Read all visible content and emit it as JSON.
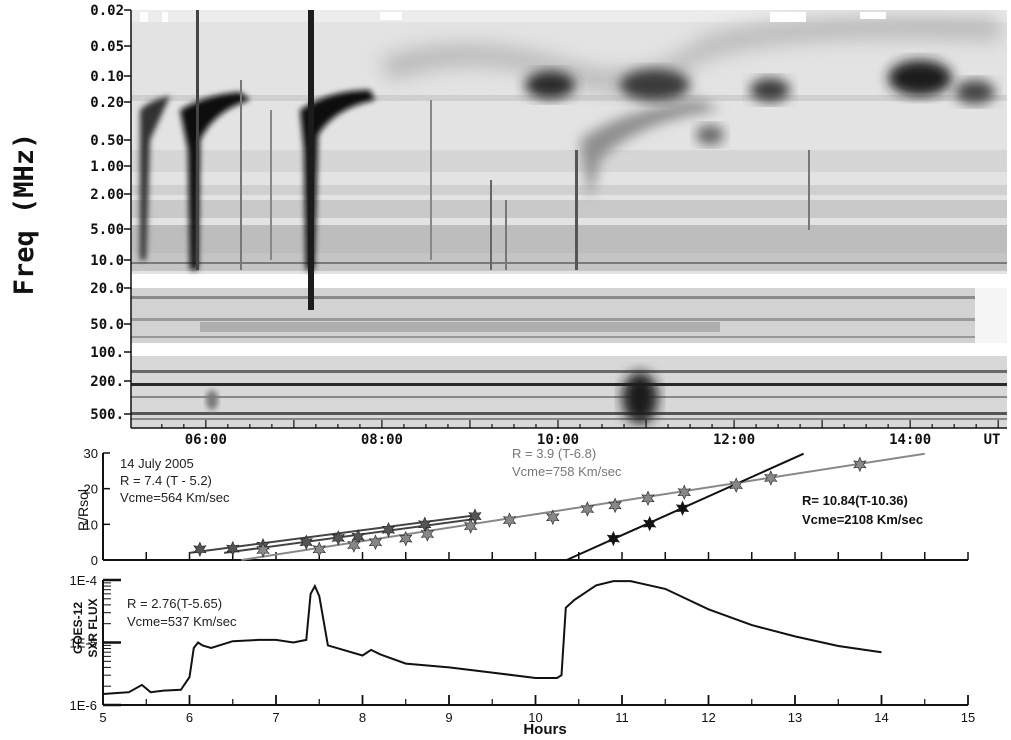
{
  "chart_data": [
    {
      "type": "heatmap",
      "ylabel": "Freq (MHz)",
      "freq_ticks": [
        "0.02",
        "0.05",
        "0.10",
        "0.20",
        "0.50",
        "1.00",
        "2.00",
        "5.00",
        "10.0",
        "20.0",
        "50.0",
        "100.",
        "200.",
        "500."
      ],
      "time_ticks": [
        "06:00",
        "08:00",
        "10:00",
        "12:00",
        "14:00"
      ],
      "time_unit_label": "UT",
      "xlim_hours": [
        5.15,
        15.1
      ]
    },
    {
      "type": "scatter",
      "ylabel": "R/Rsol",
      "ylim": [
        0,
        30
      ],
      "yticks": [
        "0",
        "10",
        "20",
        "30"
      ],
      "xlim": [
        5,
        15
      ],
      "annotations": {
        "date": "14 July 2005",
        "a_fit": "R = 7.4 (T - 5.2)",
        "a_speed": "Vcme=564 Km/sec",
        "b_fit": "R = 3.9 (T-6.8)",
        "b_speed": "Vcme=758 Km/sec",
        "c_fit": "R= 10.84(T-10.36)",
        "c_speed": "Vcme=2108 Km/sec"
      },
      "series": [
        {
          "color": "#555555",
          "points": [
            [
              6.12,
              3.0
            ],
            [
              6.5,
              3.2
            ],
            [
              6.85,
              4.0
            ],
            [
              7.35,
              5.0
            ],
            [
              7.72,
              6.2
            ],
            [
              7.95,
              6.5
            ],
            [
              8.3,
              8.5
            ],
            [
              8.72,
              10.0
            ],
            [
              9.3,
              12.3
            ]
          ]
        },
        {
          "color": "#888888",
          "points": [
            [
              6.85,
              2.8
            ],
            [
              7.5,
              3.0
            ],
            [
              7.9,
              4.2
            ],
            [
              8.15,
              5.0
            ],
            [
              8.5,
              6.0
            ],
            [
              8.75,
              7.3
            ],
            [
              9.25,
              9.5
            ],
            [
              9.7,
              11.2
            ],
            [
              10.2,
              12.0
            ],
            [
              10.6,
              14.3
            ],
            [
              10.92,
              15.3
            ],
            [
              11.3,
              17.3
            ],
            [
              11.72,
              19.0
            ],
            [
              12.32,
              21.0
            ],
            [
              12.72,
              23.0
            ],
            [
              13.75,
              26.8
            ]
          ]
        },
        {
          "color": "#111111",
          "points": [
            [
              10.9,
              6.0
            ],
            [
              11.32,
              10.2
            ],
            [
              11.7,
              14.5
            ]
          ]
        }
      ],
      "fit_lines": [
        {
          "color": "#444444",
          "from": [
            6.0,
            2.0
          ],
          "to": [
            9.3,
            12.5
          ]
        },
        {
          "color": "#444444",
          "from": [
            6.4,
            2.0
          ],
          "to": [
            9.3,
            11.5
          ]
        },
        {
          "color": "#888888",
          "from": [
            6.6,
            -0.8
          ],
          "to": [
            14.5,
            29.8
          ]
        },
        {
          "color": "#111111",
          "from": [
            10.36,
            0.0
          ],
          "to": [
            13.1,
            29.8
          ]
        }
      ]
    },
    {
      "type": "line",
      "xlabel": "Hours",
      "ylabel_line1": "GOES-12",
      "ylabel_line2": "SXR FLUX",
      "ylim": [
        1e-06,
        0.0001
      ],
      "yscale": "log",
      "yticks": [
        "1E-6",
        "1E-5",
        "1E-4"
      ],
      "xticks": [
        "5",
        "6",
        "7",
        "8",
        "9",
        "10",
        "11",
        "12",
        "13",
        "14",
        "15"
      ],
      "xlim": [
        5,
        15
      ],
      "annotations": {
        "fit": "R = 2.76(T-5.65)",
        "speed": "Vcme=537 Km/sec"
      },
      "x": [
        5.0,
        5.3,
        5.45,
        5.55,
        5.7,
        5.9,
        6.0,
        6.05,
        6.1,
        6.15,
        6.25,
        6.5,
        6.8,
        7.0,
        7.2,
        7.35,
        7.4,
        7.45,
        7.5,
        7.6,
        8.0,
        8.1,
        8.2,
        8.5,
        9.0,
        9.5,
        10.0,
        10.25,
        10.3,
        10.35,
        10.45,
        10.7,
        10.9,
        11.1,
        11.5,
        12.0,
        12.5,
        13.0,
        13.5,
        14.0
      ],
      "y": [
        1.5e-06,
        1.6e-06,
        2.1e-06,
        1.6e-06,
        1.7e-06,
        1.75e-06,
        2.8e-06,
        8.2e-06,
        1e-05,
        9e-06,
        8.2e-06,
        1.05e-05,
        1.1e-05,
        1.1e-05,
        1e-05,
        1.1e-05,
        6e-05,
        8e-05,
        5.5e-05,
        9e-06,
        6.2e-06,
        7.6e-06,
        6.5e-06,
        4.6e-06,
        4e-06,
        3.3e-06,
        2.7e-06,
        2.7e-06,
        3e-06,
        3.6e-05,
        4.8e-05,
        8.2e-05,
        9.6e-05,
        9.6e-05,
        7.2e-05,
        3.4e-05,
        1.9e-05,
        1.25e-05,
        8.8e-06,
        7e-06
      ]
    }
  ]
}
